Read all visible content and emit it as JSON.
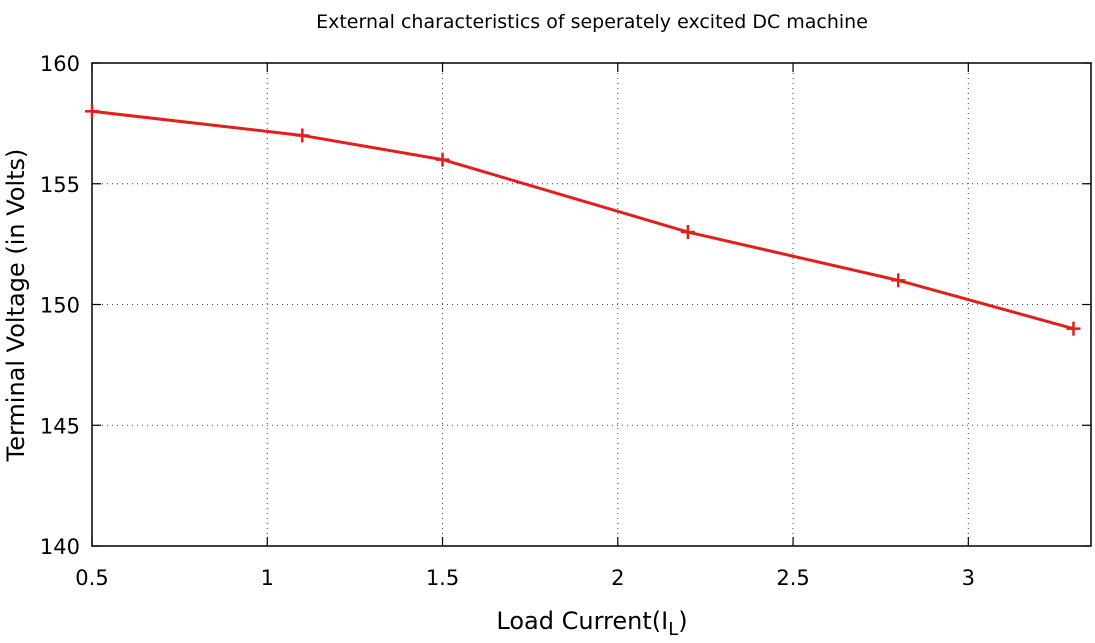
{
  "chart_data": {
    "type": "line",
    "title": "External characteristics of seperately excited DC machine",
    "xlabel_main": "Load Current(I",
    "xlabel_sub": "L",
    "xlabel_close": ")",
    "ylabel": "Terminal Voltage (in Volts)",
    "xlim": [
      0.5,
      3.35
    ],
    "ylim": [
      140,
      160
    ],
    "x_ticks": [
      0.5,
      1,
      1.5,
      2,
      2.5,
      3
    ],
    "x_tick_labels": [
      "0.5",
      "1",
      "1.5",
      "2",
      "2.5",
      "3"
    ],
    "y_ticks": [
      140,
      145,
      150,
      155,
      160
    ],
    "y_tick_labels": [
      "140",
      "145",
      "150",
      "155",
      "160"
    ],
    "grid": true,
    "legend": "none",
    "series": [
      {
        "color": "#e0201c",
        "marker": "plus",
        "x": [
          0.5,
          1.1,
          1.5,
          2.2,
          2.8,
          3.3
        ],
        "y": [
          158,
          157,
          156,
          153,
          151,
          149
        ]
      }
    ]
  }
}
